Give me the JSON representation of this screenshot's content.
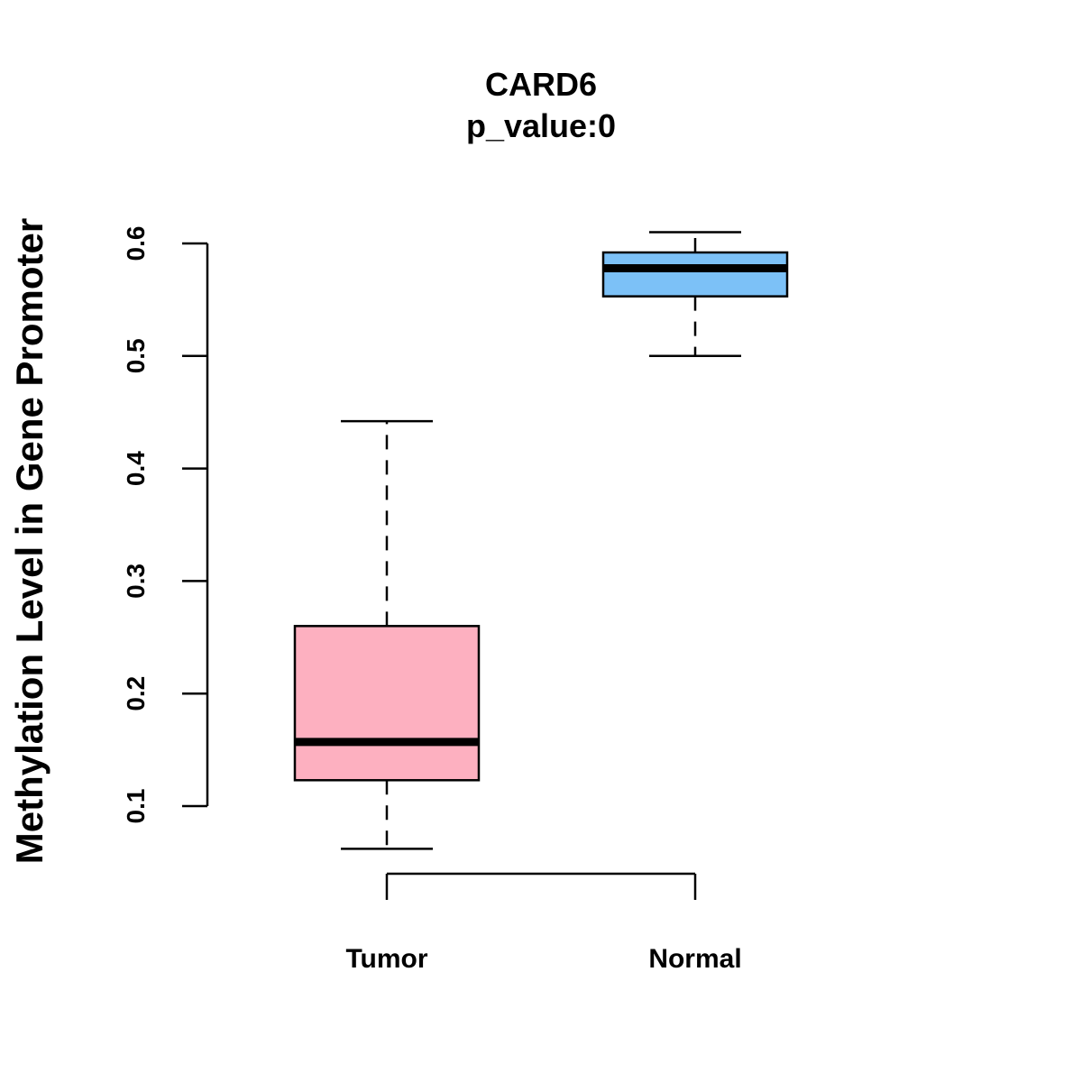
{
  "chart_data": {
    "type": "boxplot",
    "title": "CARD6",
    "subtitle": "p_value:0",
    "ylabel": "Methylation Level in Gene Promoter",
    "xlabel": "",
    "ylim": [
      0.1,
      0.6
    ],
    "yticks": [
      0.1,
      0.2,
      0.3,
      0.4,
      0.5,
      0.6
    ],
    "ytick_labels": [
      "0.1",
      "0.2",
      "0.3",
      "0.4",
      "0.5",
      "0.6"
    ],
    "categories": [
      "Tumor",
      "Normal"
    ],
    "boxes": [
      {
        "name": "Tumor",
        "color": "#FDB0C0",
        "whisker_low": 0.062,
        "q1": 0.123,
        "median": 0.157,
        "q3": 0.26,
        "whisker_high": 0.442
      },
      {
        "name": "Normal",
        "color": "#7CC1F7",
        "whisker_low": 0.5,
        "q1": 0.553,
        "median": 0.578,
        "q3": 0.592,
        "whisker_high": 0.61
      }
    ],
    "comparison_bracket": [
      "Tumor",
      "Normal"
    ]
  }
}
